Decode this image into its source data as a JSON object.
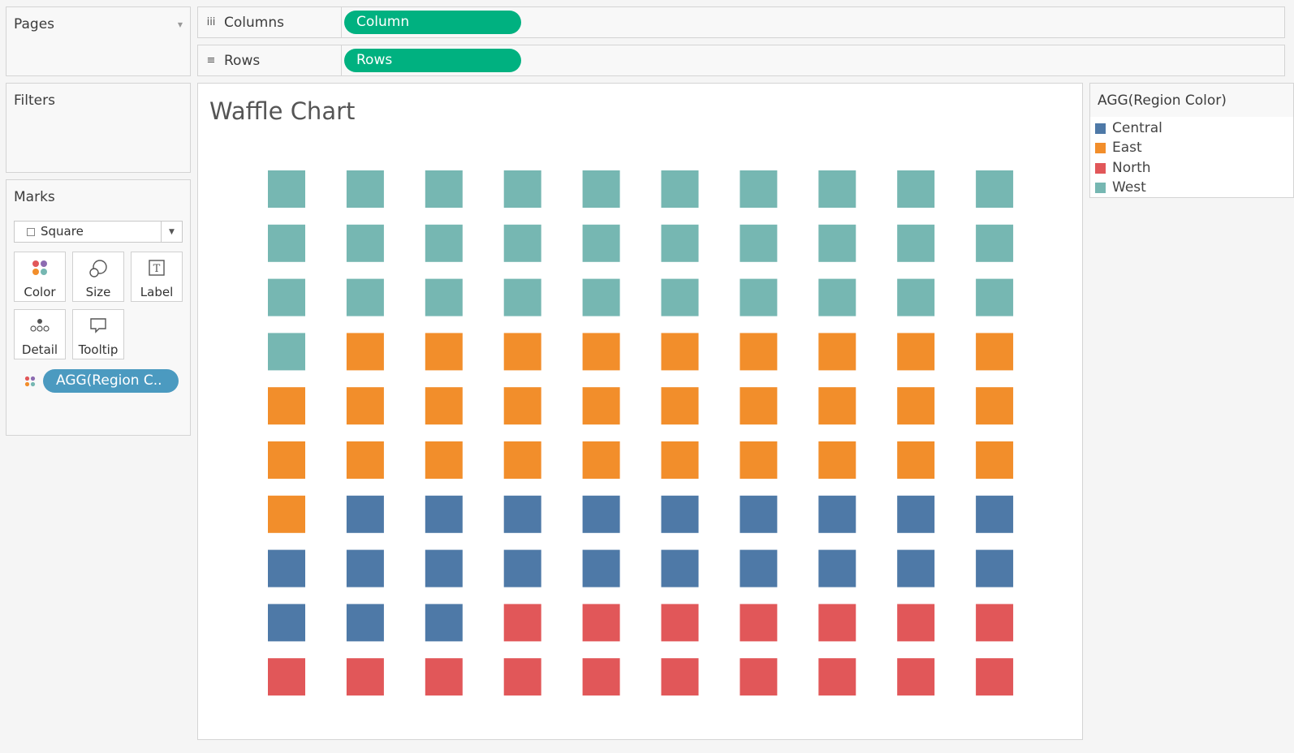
{
  "pages": {
    "title": "Pages"
  },
  "filters": {
    "title": "Filters"
  },
  "marks": {
    "title": "Marks",
    "mark_type": "Square",
    "buttons": [
      {
        "label": "Color",
        "icon": "color-dots-icon"
      },
      {
        "label": "Size",
        "icon": "size-circles-icon"
      },
      {
        "label": "Label",
        "icon": "label-t-icon"
      },
      {
        "label": "Detail",
        "icon": "detail-dots-icon"
      },
      {
        "label": "Tooltip",
        "icon": "tooltip-bubble-icon"
      }
    ],
    "color_pill": "AGG(Region C.."
  },
  "shelves": {
    "columns": {
      "label": "Columns",
      "pill": "Column"
    },
    "rows": {
      "label": "Rows",
      "pill": "Rows"
    }
  },
  "chart_data": {
    "type": "waffle",
    "title": "Waffle Chart",
    "grid": {
      "rows": 10,
      "cols": 10
    },
    "counts": {
      "West": 31,
      "East": 30,
      "Central": 22,
      "North": 17
    },
    "order": [
      "West",
      "East",
      "Central",
      "North"
    ],
    "colors": {
      "Central": "#4e79a7",
      "East": "#f28e2b",
      "North": "#e15759",
      "West": "#76b7b2"
    }
  },
  "legend": {
    "title": "AGG(Region Color)",
    "items": [
      "Central",
      "East",
      "North",
      "West"
    ]
  }
}
